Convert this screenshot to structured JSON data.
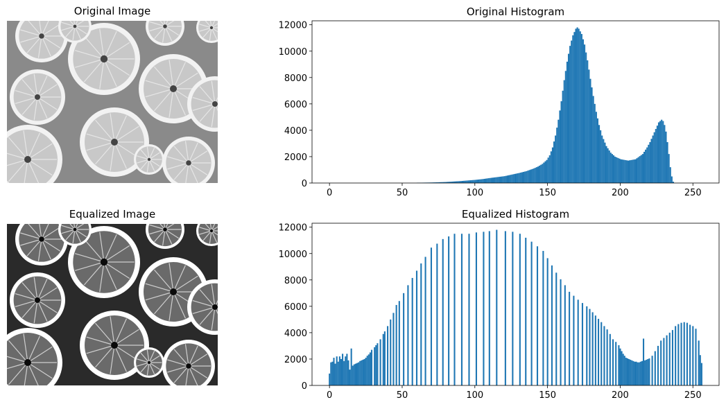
{
  "panels": {
    "original_image_title": "Original Image",
    "equalized_image_title": "Equalized Image"
  },
  "colors": {
    "bar": "#1f77b4",
    "orange_flesh_light": "#c8c8c8",
    "orange_rind": "#f2f2f2"
  },
  "chart_data": [
    {
      "type": "bar",
      "title": "Original Histogram",
      "xlabel": "",
      "ylabel": "",
      "xlim": [
        -12,
        268
      ],
      "ylim": [
        0,
        12300
      ],
      "x_ticks": [
        0,
        50,
        100,
        150,
        200,
        250
      ],
      "y_ticks": [
        0,
        2000,
        4000,
        6000,
        8000,
        10000,
        12000
      ],
      "grid": false,
      "bin_width": 1,
      "bins": [
        [
          60,
          20
        ],
        [
          70,
          40
        ],
        [
          80,
          80
        ],
        [
          90,
          150
        ],
        [
          100,
          240
        ],
        [
          105,
          300
        ],
        [
          110,
          380
        ],
        [
          115,
          450
        ],
        [
          120,
          520
        ],
        [
          125,
          640
        ],
        [
          130,
          760
        ],
        [
          135,
          900
        ],
        [
          140,
          1100
        ],
        [
          143,
          1250
        ],
        [
          146,
          1450
        ],
        [
          149,
          1750
        ],
        [
          151,
          2100
        ],
        [
          153,
          2700
        ],
        [
          155,
          3600
        ],
        [
          157,
          4800
        ],
        [
          159,
          6200
        ],
        [
          161,
          7800
        ],
        [
          163,
          9200
        ],
        [
          165,
          10400
        ],
        [
          167,
          11200
        ],
        [
          169,
          11700
        ],
        [
          170,
          11800
        ],
        [
          171,
          11700
        ],
        [
          173,
          11300
        ],
        [
          175,
          10500
        ],
        [
          177,
          9300
        ],
        [
          179,
          7900
        ],
        [
          181,
          6600
        ],
        [
          183,
          5400
        ],
        [
          185,
          4400
        ],
        [
          187,
          3600
        ],
        [
          190,
          2800
        ],
        [
          193,
          2300
        ],
        [
          196,
          2000
        ],
        [
          200,
          1800
        ],
        [
          205,
          1700
        ],
        [
          210,
          1800
        ],
        [
          215,
          2200
        ],
        [
          218,
          2700
        ],
        [
          220,
          3100
        ],
        [
          222,
          3600
        ],
        [
          224,
          4100
        ],
        [
          226,
          4600
        ],
        [
          228,
          4800
        ],
        [
          229,
          4700
        ],
        [
          230,
          4400
        ],
        [
          231,
          3900
        ],
        [
          232,
          3100
        ],
        [
          233,
          2200
        ],
        [
          234,
          1200
        ],
        [
          235,
          500
        ],
        [
          236,
          100
        ],
        [
          237,
          0
        ]
      ]
    },
    {
      "type": "bar",
      "title": "Equalized Histogram",
      "xlabel": "",
      "ylabel": "",
      "xlim": [
        -12,
        268
      ],
      "ylim": [
        0,
        12300
      ],
      "x_ticks": [
        0,
        50,
        100,
        150,
        200,
        250
      ],
      "y_ticks": [
        0,
        2000,
        4000,
        6000,
        8000,
        10000,
        12000
      ],
      "grid": false,
      "bars": [
        [
          0,
          900
        ],
        [
          1,
          1750
        ],
        [
          2,
          1800
        ],
        [
          3,
          2100
        ],
        [
          4,
          1650
        ],
        [
          5,
          2200
        ],
        [
          6,
          1800
        ],
        [
          7,
          2200
        ],
        [
          8,
          2000
        ],
        [
          9,
          2400
        ],
        [
          10,
          1850
        ],
        [
          11,
          2200
        ],
        [
          12,
          2400
        ],
        [
          13,
          1900
        ],
        [
          14,
          1200
        ],
        [
          15,
          2800
        ],
        [
          16,
          1500
        ],
        [
          17,
          1600
        ],
        [
          18,
          1650
        ],
        [
          19,
          1700
        ],
        [
          20,
          1750
        ],
        [
          21,
          1850
        ],
        [
          22,
          1900
        ],
        [
          23,
          1950
        ],
        [
          24,
          2000
        ],
        [
          25,
          2100
        ],
        [
          26,
          2250
        ],
        [
          27,
          2350
        ],
        [
          28,
          2500
        ],
        [
          29,
          2700
        ],
        [
          31,
          2900
        ],
        [
          32,
          3050
        ],
        [
          33,
          3200
        ],
        [
          35,
          3500
        ],
        [
          37,
          3900
        ],
        [
          38,
          4100
        ],
        [
          40,
          4500
        ],
        [
          42,
          5000
        ],
        [
          44,
          5500
        ],
        [
          46,
          6100
        ],
        [
          48,
          6400
        ],
        [
          51,
          7000
        ],
        [
          54,
          7600
        ],
        [
          57,
          8150
        ],
        [
          60,
          8700
        ],
        [
          63,
          9250
        ],
        [
          66,
          9750
        ],
        [
          70,
          10450
        ],
        [
          74,
          10750
        ],
        [
          78,
          11100
        ],
        [
          82,
          11300
        ],
        [
          86,
          11500
        ],
        [
          91,
          11500
        ],
        [
          96,
          11500
        ],
        [
          101,
          11600
        ],
        [
          106,
          11650
        ],
        [
          110,
          11700
        ],
        [
          115,
          11800
        ],
        [
          121,
          11700
        ],
        [
          126,
          11650
        ],
        [
          131,
          11500
        ],
        [
          135,
          11200
        ],
        [
          139,
          10900
        ],
        [
          143,
          10550
        ],
        [
          147,
          10200
        ],
        [
          150,
          9650
        ],
        [
          153,
          9100
        ],
        [
          156,
          8550
        ],
        [
          159,
          8050
        ],
        [
          162,
          7600
        ],
        [
          165,
          7100
        ],
        [
          168,
          6800
        ],
        [
          171,
          6500
        ],
        [
          174,
          6250
        ],
        [
          177,
          6000
        ],
        [
          179,
          5800
        ],
        [
          181,
          5550
        ],
        [
          183,
          5300
        ],
        [
          185,
          5050
        ],
        [
          187,
          4800
        ],
        [
          189,
          4500
        ],
        [
          191,
          4250
        ],
        [
          193,
          3900
        ],
        [
          195,
          3500
        ],
        [
          197,
          3300
        ],
        [
          199,
          3050
        ],
        [
          200,
          2800
        ],
        [
          201,
          2600
        ],
        [
          202,
          2400
        ],
        [
          203,
          2250
        ],
        [
          204,
          2100
        ],
        [
          205,
          2050
        ],
        [
          206,
          2000
        ],
        [
          207,
          1950
        ],
        [
          208,
          1900
        ],
        [
          209,
          1850
        ],
        [
          210,
          1800
        ],
        [
          211,
          1800
        ],
        [
          212,
          1750
        ],
        [
          213,
          1750
        ],
        [
          214,
          1800
        ],
        [
          215,
          1850
        ],
        [
          216,
          3550
        ],
        [
          217,
          1900
        ],
        [
          218,
          1950
        ],
        [
          219,
          2000
        ],
        [
          220,
          2050
        ],
        [
          222,
          2250
        ],
        [
          224,
          2600
        ],
        [
          226,
          3000
        ],
        [
          228,
          3400
        ],
        [
          230,
          3600
        ],
        [
          232,
          3800
        ],
        [
          234,
          4000
        ],
        [
          236,
          4200
        ],
        [
          238,
          4500
        ],
        [
          240,
          4650
        ],
        [
          242,
          4750
        ],
        [
          244,
          4800
        ],
        [
          246,
          4750
        ],
        [
          248,
          4600
        ],
        [
          250,
          4500
        ],
        [
          252,
          4300
        ],
        [
          254,
          3400
        ],
        [
          255,
          2300
        ],
        [
          256,
          1700
        ]
      ]
    }
  ]
}
